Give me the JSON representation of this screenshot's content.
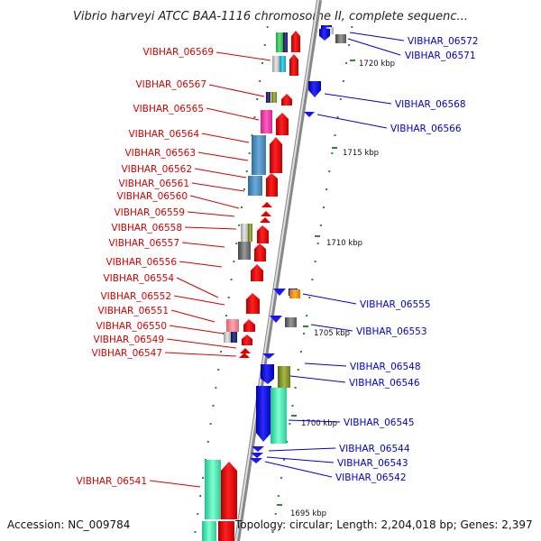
{
  "title": "Vibrio harveyi ATCC BAA-1116 chromosome II, complete sequenc...",
  "footer": {
    "accession": "Accession: NC_009784",
    "topology": "Topology: circular; Length: 2,204,018 bp; Genes: 2,397"
  },
  "colors": {
    "left_label": "#d40000",
    "right_label": "#0000cc",
    "backbone": "#999999"
  },
  "kbp_markers": [
    "1720 kbp",
    "1715 kbp",
    "1710 kbp",
    "1705 kbp",
    "1700 kbp",
    "1695 kbp"
  ],
  "left_genes": [
    "VIBHAR_06569",
    "VIBHAR_06567",
    "VIBHAR_06565",
    "VIBHAR_06564",
    "VIBHAR_06563",
    "VIBHAR_06562",
    "VIBHAR_06561",
    "VIBHAR_06560",
    "VIBHAR_06559",
    "VIBHAR_06558",
    "VIBHAR_06557",
    "VIBHAR_06556",
    "VIBHAR_06554",
    "VIBHAR_06552",
    "VIBHAR_06551",
    "VIBHAR_06550",
    "VIBHAR_06549",
    "VIBHAR_06547",
    "VIBHAR_06541"
  ],
  "right_genes": [
    "VIBHAR_06572",
    "VIBHAR_06571",
    "VIBHAR_06568",
    "VIBHAR_06566",
    "VIBHAR_06555",
    "VIBHAR_06553",
    "VIBHAR_06548",
    "VIBHAR_06546",
    "VIBHAR_06545",
    "VIBHAR_06544",
    "VIBHAR_06543",
    "VIBHAR_06542"
  ]
}
